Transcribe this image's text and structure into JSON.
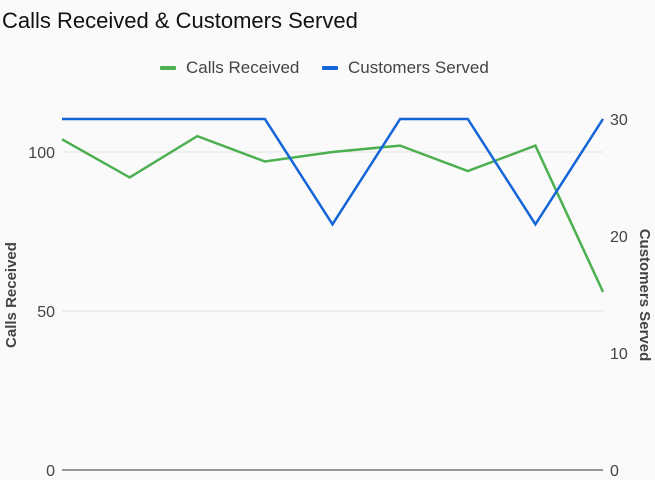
{
  "chart_data": {
    "type": "line",
    "title": "Calls Received & Customers Served",
    "x": [
      "",
      "",
      "",
      "",
      "",
      "",
      "",
      "",
      ""
    ],
    "series": [
      {
        "name": "Calls Received",
        "axis": "left",
        "color": "#4caf50",
        "values": [
          104,
          92,
          105,
          97,
          100,
          102,
          94,
          102,
          56
        ]
      },
      {
        "name": "Customers Served",
        "axis": "right",
        "color": "#1565d8",
        "values": [
          30,
          30,
          30,
          30,
          21,
          30,
          30,
          21,
          30
        ]
      }
    ],
    "y_left": {
      "label": "Calls Received",
      "range": [
        0,
        112
      ],
      "ticks": [
        0,
        50,
        100
      ]
    },
    "y_right": {
      "label": "Customers Served",
      "range": [
        0,
        30
      ],
      "ticks": [
        0,
        10,
        20,
        30
      ]
    },
    "grid": true,
    "legend_position": "top-center"
  }
}
